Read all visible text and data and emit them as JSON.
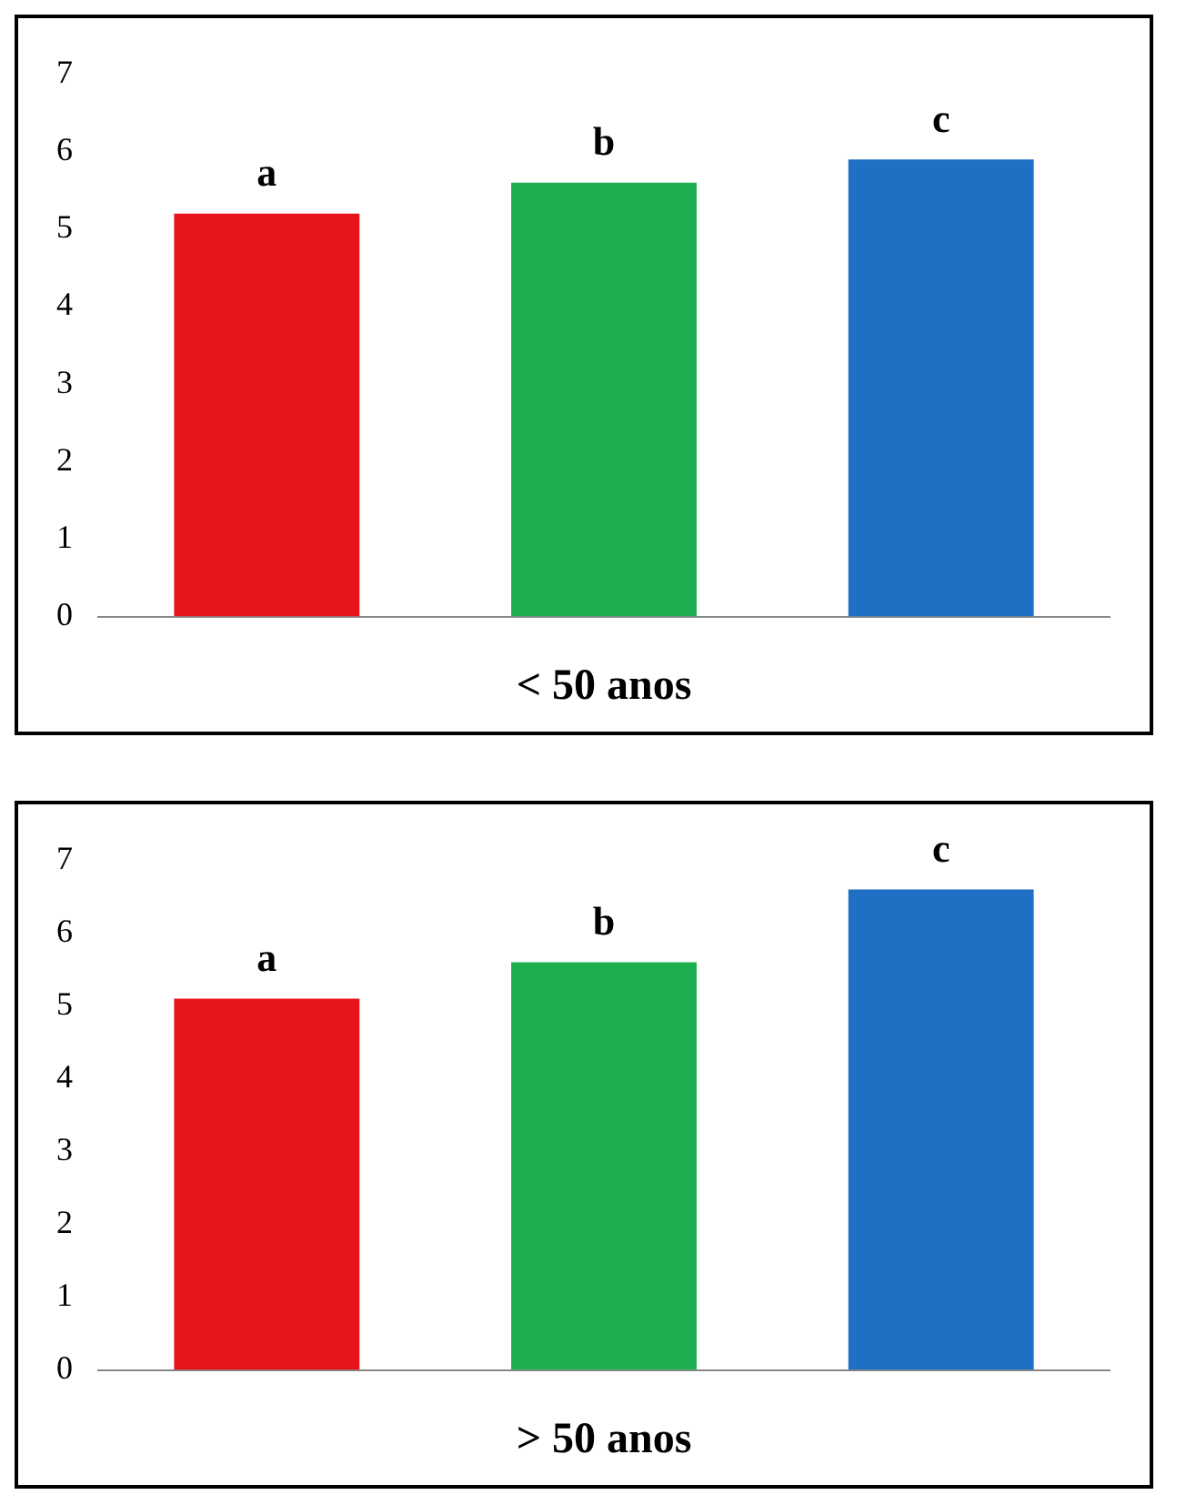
{
  "chart_data": [
    {
      "type": "bar",
      "xlabel": "< 50 anos",
      "categories": [
        null,
        null,
        null
      ],
      "values": [
        5.2,
        5.6,
        5.9
      ],
      "colors": [
        "#e8141b",
        "#1fae4f",
        "#1f6fc4"
      ],
      "value_labels": [
        "a",
        "b",
        "c"
      ],
      "ylim": [
        0,
        7
      ],
      "yticks": [
        0,
        1,
        2,
        3,
        4,
        5,
        6,
        7
      ],
      "grid": false,
      "legend": false
    },
    {
      "type": "bar",
      "xlabel": "> 50 anos",
      "categories": [
        null,
        null,
        null
      ],
      "values": [
        5.1,
        5.6,
        6.6
      ],
      "colors": [
        "#e8141b",
        "#1fae4f",
        "#1f6fc4"
      ],
      "value_labels": [
        "a",
        "b",
        "c"
      ],
      "ylim": [
        0,
        7
      ],
      "yticks": [
        0,
        1,
        2,
        3,
        4,
        5,
        6,
        7
      ],
      "grid": false,
      "legend": false
    }
  ]
}
